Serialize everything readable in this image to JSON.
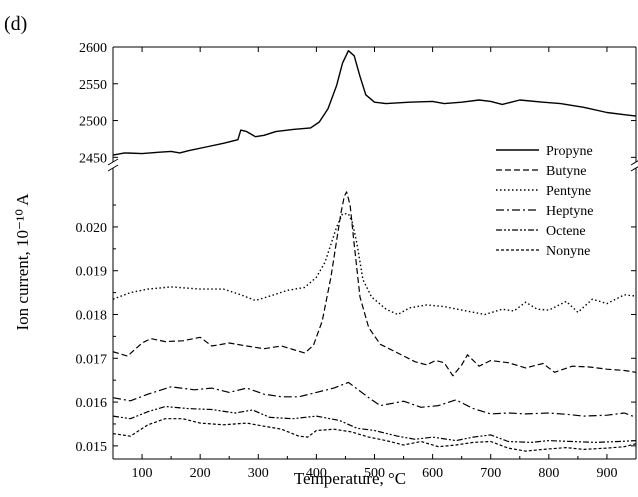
{
  "panel_label": "(d)",
  "chart_data": {
    "type": "line",
    "xlabel": "Temperature, °C",
    "ylabel": "Ion current, 10⁻¹⁰ A",
    "xlim": [
      50,
      950
    ],
    "x_ticks": [
      100,
      200,
      300,
      400,
      500,
      600,
      700,
      800,
      900
    ],
    "broken_y_axis": true,
    "upper_ylim": [
      2445,
      2600
    ],
    "upper_y_ticks": [
      2450,
      2500,
      2550,
      2600
    ],
    "upper_y_tick_labels": [
      "2450",
      "2500",
      "2550",
      "2600"
    ],
    "lower_ylim": [
      0.0147,
      0.0213
    ],
    "lower_y_ticks": [
      0.015,
      0.016,
      0.017,
      0.018,
      0.019,
      0.02
    ],
    "lower_y_tick_labels": [
      "0.015",
      "0.016",
      "0.017",
      "0.018",
      "0.019",
      "0.020"
    ],
    "legend_position": "right",
    "series": [
      {
        "name": "Propyne",
        "panel": "upper",
        "dash": "",
        "width": 1.4,
        "points": [
          [
            50,
            2453
          ],
          [
            70,
            2456
          ],
          [
            100,
            2455
          ],
          [
            130,
            2457
          ],
          [
            150,
            2458
          ],
          [
            165,
            2456
          ],
          [
            180,
            2459
          ],
          [
            210,
            2464
          ],
          [
            240,
            2469
          ],
          [
            265,
            2474
          ],
          [
            270,
            2487
          ],
          [
            280,
            2485
          ],
          [
            295,
            2478
          ],
          [
            310,
            2480
          ],
          [
            330,
            2485
          ],
          [
            360,
            2488
          ],
          [
            390,
            2490
          ],
          [
            405,
            2498
          ],
          [
            420,
            2516
          ],
          [
            435,
            2548
          ],
          [
            445,
            2578
          ],
          [
            455,
            2595
          ],
          [
            465,
            2588
          ],
          [
            475,
            2560
          ],
          [
            485,
            2535
          ],
          [
            500,
            2525
          ],
          [
            520,
            2523
          ],
          [
            560,
            2525
          ],
          [
            600,
            2526
          ],
          [
            620,
            2523
          ],
          [
            650,
            2525
          ],
          [
            680,
            2528
          ],
          [
            700,
            2526
          ],
          [
            720,
            2522
          ],
          [
            750,
            2528
          ],
          [
            790,
            2525
          ],
          [
            820,
            2523
          ],
          [
            860,
            2518
          ],
          [
            900,
            2511
          ],
          [
            930,
            2508
          ],
          [
            950,
            2506
          ]
        ]
      },
      {
        "name": "Butyne",
        "panel": "lower",
        "dash": "6,3",
        "width": 1.2,
        "points": [
          [
            50,
            0.01715
          ],
          [
            75,
            0.01705
          ],
          [
            100,
            0.01735
          ],
          [
            115,
            0.01745
          ],
          [
            140,
            0.01738
          ],
          [
            170,
            0.0174
          ],
          [
            200,
            0.01748
          ],
          [
            220,
            0.01728
          ],
          [
            250,
            0.01735
          ],
          [
            280,
            0.01728
          ],
          [
            310,
            0.01722
          ],
          [
            340,
            0.01728
          ],
          [
            360,
            0.0172
          ],
          [
            380,
            0.01712
          ],
          [
            395,
            0.0173
          ],
          [
            410,
            0.01785
          ],
          [
            425,
            0.01885
          ],
          [
            435,
            0.0197
          ],
          [
            442,
            0.0203
          ],
          [
            448,
            0.0207
          ],
          [
            452,
            0.0208
          ],
          [
            458,
            0.0205
          ],
          [
            465,
            0.0196
          ],
          [
            475,
            0.0184
          ],
          [
            490,
            0.0177
          ],
          [
            510,
            0.01732
          ],
          [
            540,
            0.01712
          ],
          [
            570,
            0.01692
          ],
          [
            590,
            0.01685
          ],
          [
            605,
            0.01695
          ],
          [
            620,
            0.0169
          ],
          [
            635,
            0.0166
          ],
          [
            650,
            0.01685
          ],
          [
            660,
            0.01708
          ],
          [
            680,
            0.01682
          ],
          [
            700,
            0.01695
          ],
          [
            730,
            0.0169
          ],
          [
            760,
            0.01678
          ],
          [
            790,
            0.01688
          ],
          [
            810,
            0.01668
          ],
          [
            840,
            0.01682
          ],
          [
            870,
            0.0168
          ],
          [
            900,
            0.01675
          ],
          [
            930,
            0.01672
          ],
          [
            950,
            0.01668
          ]
        ]
      },
      {
        "name": "Pentyne",
        "panel": "lower",
        "dash": "1.5,2.5",
        "width": 1.4,
        "points": [
          [
            50,
            0.01835
          ],
          [
            80,
            0.0185
          ],
          [
            110,
            0.01858
          ],
          [
            150,
            0.01863
          ],
          [
            200,
            0.01858
          ],
          [
            240,
            0.01858
          ],
          [
            270,
            0.01845
          ],
          [
            295,
            0.01832
          ],
          [
            320,
            0.01842
          ],
          [
            350,
            0.01855
          ],
          [
            380,
            0.01862
          ],
          [
            400,
            0.01885
          ],
          [
            415,
            0.0192
          ],
          [
            425,
            0.0196
          ],
          [
            435,
            0.02
          ],
          [
            445,
            0.0203
          ],
          [
            455,
            0.0203
          ],
          [
            462,
            0.0201
          ],
          [
            470,
            0.0196
          ],
          [
            480,
            0.0188
          ],
          [
            495,
            0.0184
          ],
          [
            520,
            0.01812
          ],
          [
            540,
            0.018
          ],
          [
            560,
            0.01815
          ],
          [
            590,
            0.01822
          ],
          [
            620,
            0.01818
          ],
          [
            650,
            0.0181
          ],
          [
            690,
            0.018
          ],
          [
            720,
            0.01812
          ],
          [
            740,
            0.01808
          ],
          [
            760,
            0.01828
          ],
          [
            780,
            0.01812
          ],
          [
            800,
            0.0181
          ],
          [
            830,
            0.0183
          ],
          [
            850,
            0.01805
          ],
          [
            875,
            0.01835
          ],
          [
            900,
            0.01825
          ],
          [
            930,
            0.01845
          ],
          [
            950,
            0.01842
          ]
        ]
      },
      {
        "name": "Heptyne",
        "panel": "lower",
        "dash": "8,3,2,3",
        "width": 1.2,
        "points": [
          [
            50,
            0.0161
          ],
          [
            80,
            0.01603
          ],
          [
            110,
            0.01618
          ],
          [
            150,
            0.01635
          ],
          [
            190,
            0.01628
          ],
          [
            220,
            0.01632
          ],
          [
            250,
            0.01622
          ],
          [
            280,
            0.01632
          ],
          [
            310,
            0.01618
          ],
          [
            340,
            0.01612
          ],
          [
            370,
            0.01612
          ],
          [
            400,
            0.01622
          ],
          [
            430,
            0.01632
          ],
          [
            455,
            0.01645
          ],
          [
            470,
            0.0163
          ],
          [
            490,
            0.0161
          ],
          [
            510,
            0.01592
          ],
          [
            550,
            0.01602
          ],
          [
            580,
            0.01588
          ],
          [
            610,
            0.01592
          ],
          [
            640,
            0.01605
          ],
          [
            670,
            0.01585
          ],
          [
            700,
            0.01573
          ],
          [
            730,
            0.01575
          ],
          [
            760,
            0.01573
          ],
          [
            800,
            0.01575
          ],
          [
            830,
            0.01572
          ],
          [
            860,
            0.01568
          ],
          [
            900,
            0.0157
          ],
          [
            930,
            0.01575
          ],
          [
            950,
            0.01565
          ]
        ]
      },
      {
        "name": "Octene",
        "panel": "lower",
        "dash": "6,2,2,2,2,2",
        "width": 1.2,
        "points": [
          [
            50,
            0.01568
          ],
          [
            80,
            0.01562
          ],
          [
            110,
            0.01578
          ],
          [
            140,
            0.0159
          ],
          [
            180,
            0.01585
          ],
          [
            220,
            0.01583
          ],
          [
            260,
            0.01575
          ],
          [
            290,
            0.01582
          ],
          [
            320,
            0.01565
          ],
          [
            360,
            0.01562
          ],
          [
            400,
            0.01568
          ],
          [
            440,
            0.01558
          ],
          [
            470,
            0.0154
          ],
          [
            500,
            0.01535
          ],
          [
            540,
            0.01522
          ],
          [
            570,
            0.01515
          ],
          [
            600,
            0.0152
          ],
          [
            640,
            0.01512
          ],
          [
            670,
            0.0152
          ],
          [
            700,
            0.01525
          ],
          [
            730,
            0.0151
          ],
          [
            770,
            0.01508
          ],
          [
            800,
            0.01512
          ],
          [
            840,
            0.0151
          ],
          [
            880,
            0.01508
          ],
          [
            920,
            0.0151
          ],
          [
            950,
            0.01512
          ]
        ]
      },
      {
        "name": "Nonyne",
        "panel": "lower",
        "dash": "3,2",
        "width": 1.2,
        "points": [
          [
            50,
            0.01528
          ],
          [
            80,
            0.01522
          ],
          [
            110,
            0.01548
          ],
          [
            140,
            0.01562
          ],
          [
            170,
            0.01562
          ],
          [
            200,
            0.01552
          ],
          [
            240,
            0.01548
          ],
          [
            280,
            0.01552
          ],
          [
            310,
            0.01545
          ],
          [
            340,
            0.01538
          ],
          [
            370,
            0.01522
          ],
          [
            385,
            0.0152
          ],
          [
            400,
            0.01535
          ],
          [
            430,
            0.01538
          ],
          [
            460,
            0.01532
          ],
          [
            490,
            0.0152
          ],
          [
            520,
            0.01512
          ],
          [
            550,
            0.01502
          ],
          [
            580,
            0.0151
          ],
          [
            610,
            0.01498
          ],
          [
            640,
            0.01502
          ],
          [
            670,
            0.01508
          ],
          [
            700,
            0.0151
          ],
          [
            730,
            0.01495
          ],
          [
            760,
            0.01488
          ],
          [
            790,
            0.01492
          ],
          [
            830,
            0.01496
          ],
          [
            860,
            0.01492
          ],
          [
            900,
            0.01495
          ],
          [
            930,
            0.01498
          ],
          [
            950,
            0.01505
          ]
        ]
      }
    ]
  }
}
